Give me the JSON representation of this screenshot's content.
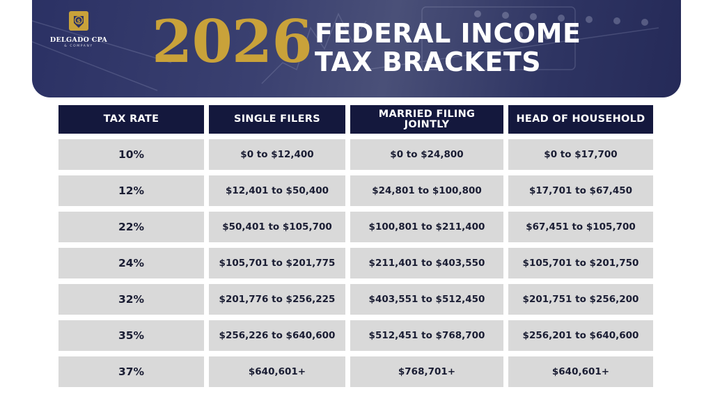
{
  "brand": {
    "name": "DELGADO CPA",
    "tagline": "& COMPANY"
  },
  "title": {
    "year": "2026",
    "line1": "FEDERAL INCOME",
    "line2": "TAX BRACKETS"
  },
  "colors": {
    "navy": "#14183d",
    "gold": "#c9a23a",
    "row_gray": "#d9d9d9",
    "banner": "#2b3164"
  },
  "table": {
    "headers": [
      "TAX RATE",
      "SINGLE FILERS",
      "MARRIED FILING JOINTLY",
      "HEAD OF HOUSEHOLD"
    ],
    "rows": [
      [
        "10%",
        "$0 to $12,400",
        "$0 to $24,800",
        "$0 to $17,700"
      ],
      [
        "12%",
        "$12,401 to $50,400",
        "$24,801 to $100,800",
        "$17,701 to $67,450"
      ],
      [
        "22%",
        "$50,401 to $105,700",
        "$100,801 to $211,400",
        "$67,451 to $105,700"
      ],
      [
        "24%",
        "$105,701 to $201,775",
        "$211,401 to $403,550",
        "$105,701 to $201,750"
      ],
      [
        "32%",
        "$201,776 to $256,225",
        "$403,551 to $512,450",
        "$201,751 to $256,200"
      ],
      [
        "35%",
        "$256,226 to $640,600",
        "$512,451 to $768,700",
        "$256,201 to $640,600"
      ],
      [
        "37%",
        "$640,601+",
        "$768,701+",
        "$640,601+"
      ]
    ]
  }
}
